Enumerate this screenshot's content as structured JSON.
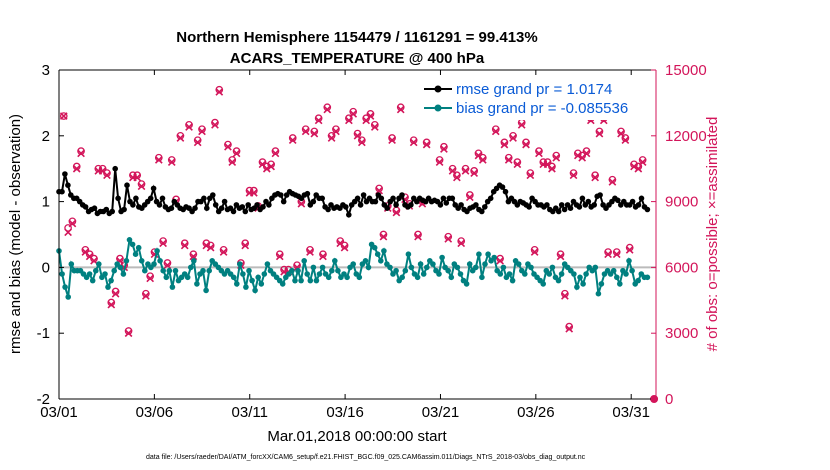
{
  "chart_data": {
    "type": "line",
    "title_line1": "Northern Hemisphere 1154479 / 1161291 = 99.413%",
    "title_line2": "ACARS_TEMPERATURE @ 400 hPa",
    "xlabel": "Mar.01,2018 00:00:00 start",
    "ylabel_left": "rmse and bias (model - observation)",
    "ylabel_right": "# of obs: o=possible; ×=assimilated",
    "footer": "data file: /Users/raeder/DAI/ATM_forcXX/CAM6_setup/f.e21.FHIST_BGC.f09_025.CAM6assim.011/Diags_NTrS_2018-03/obs_diag_output.nc",
    "x_ticks": [
      "03/01",
      "03/06",
      "03/11",
      "03/16",
      "03/21",
      "03/26",
      "03/31"
    ],
    "x_tick_days": [
      1,
      6,
      11,
      16,
      21,
      26,
      31
    ],
    "xlim_days": [
      1,
      32.3
    ],
    "ylim_left": [
      -2,
      3
    ],
    "y_ticks_left": [
      "-2",
      "-1",
      "0",
      "1",
      "2",
      "3"
    ],
    "ylim_right": [
      0,
      15000
    ],
    "y_ticks_right": [
      "0",
      "3000",
      "6000",
      "9000",
      "12000",
      "15000"
    ],
    "colors": {
      "rmse": "#000000",
      "bias": "#008080",
      "obs": "#d3155a",
      "zero_line": "#bbbbbb"
    },
    "legend": [
      {
        "label": "rmse grand pr = 1.0174",
        "series": "rmse"
      },
      {
        "label": "bias grand pr = -0.085536",
        "series": "bias"
      }
    ],
    "series": [
      {
        "name": "rmse",
        "axis": "left",
        "values": [
          1.15,
          1.15,
          1.42,
          1.25,
          1.1,
          1.05,
          1.05,
          1.0,
          0.95,
          0.92,
          0.85,
          0.88,
          0.9,
          0.82,
          0.85,
          0.85,
          0.88,
          0.82,
          0.85,
          1.5,
          1.05,
          0.85,
          0.88,
          1.25,
          1.0,
          0.95,
          1.05,
          0.92,
          0.9,
          0.95,
          1.0,
          1.05,
          1.2,
          1.0,
          0.95,
          1.05,
          0.92,
          0.88,
          0.9,
          1.0,
          0.95,
          0.9,
          0.88,
          0.92,
          0.9,
          0.85,
          0.9,
          1.0,
          1.0,
          1.05,
          0.9,
          1.05,
          1.1,
          0.95,
          0.85,
          0.9,
          1.0,
          0.88,
          0.9,
          0.85,
          0.95,
          0.9,
          0.92,
          0.85,
          0.95,
          0.88,
          0.9,
          0.95,
          0.88,
          0.92,
          1.0,
          0.95,
          1.05,
          1.1,
          1.12,
          1.1,
          1.0,
          1.1,
          1.15,
          1.12,
          1.1,
          1.08,
          1.05,
          1.1,
          1.12,
          0.95,
          1.0,
          1.1,
          1.05,
          1.05,
          0.92,
          0.88,
          0.95,
          0.9,
          0.92,
          0.9,
          0.95,
          0.92,
          0.8,
          0.95,
          1.0,
          1.05,
          0.95,
          1.1,
          1.0,
          1.05,
          1.0,
          1.0,
          1.1,
          1.05,
          0.95,
          0.9,
          1.0,
          1.05,
          0.95,
          1.05,
          1.1,
          0.95,
          0.92,
          0.95,
          1.05,
          1.0,
          1.05,
          1.02,
          1.0,
          1.05,
          1.0,
          1.02,
          1.0,
          0.95,
          1.05,
          0.98,
          1.05,
          1.05,
          0.95,
          0.9,
          0.95,
          0.88,
          0.85,
          0.9,
          0.92,
          0.95,
          0.88,
          0.85,
          0.92,
          1.0,
          1.05,
          1.15,
          1.2,
          1.25,
          1.22,
          1.15,
          1.0,
          1.05,
          1.0,
          0.95,
          1.0,
          0.98,
          0.95,
          0.92,
          1.05,
          1.0,
          0.95,
          0.95,
          0.92,
          0.95,
          0.88,
          0.85,
          0.9,
          0.85,
          0.95,
          0.88,
          0.95,
          0.9,
          1.0,
          0.95,
          0.92,
          1.05,
          0.95,
          1.0,
          0.92,
          0.95,
          1.08,
          1.1,
          0.95,
          0.9,
          0.95,
          1.0,
          1.05,
          1.02,
          0.95,
          1.0,
          0.95,
          0.95,
          1.0,
          0.92,
          0.95,
          1.05,
          0.92,
          0.88
        ]
      },
      {
        "name": "bias",
        "axis": "left",
        "values": [
          0.25,
          -0.1,
          -0.3,
          -0.45,
          0.05,
          -0.05,
          -0.05,
          -0.05,
          -0.1,
          -0.15,
          -0.1,
          -0.2,
          -0.05,
          0.05,
          -0.15,
          -0.1,
          -0.3,
          -0.2,
          -0.05,
          0.05,
          0.0,
          -0.1,
          0.1,
          0.42,
          0.35,
          0.2,
          0.3,
          0.1,
          -0.05,
          0.05,
          0.0,
          0.05,
          0.25,
          0.1,
          -0.05,
          -0.15,
          -0.05,
          -0.3,
          -0.05,
          -0.2,
          -0.15,
          -0.1,
          -0.15,
          0.0,
          0.1,
          -0.25,
          -0.1,
          -0.05,
          -0.35,
          -0.05,
          0.1,
          0.05,
          0.0,
          -0.05,
          -0.1,
          -0.05,
          -0.1,
          -0.15,
          -0.25,
          0.05,
          -0.1,
          -0.3,
          -0.05,
          -0.2,
          -0.35,
          -0.15,
          -0.25,
          -0.1,
          0.05,
          -0.05,
          -0.1,
          -0.15,
          -0.2,
          -0.25,
          -0.15,
          -0.1,
          -0.05,
          -0.2,
          -0.05,
          -0.2,
          0.1,
          -0.1,
          -0.2,
          0.0,
          -0.2,
          -0.1,
          0.0,
          -0.1,
          -0.15,
          -0.05,
          0.1,
          -0.05,
          -0.15,
          -0.1,
          -0.15,
          0.0,
          0.05,
          -0.1,
          -0.15,
          0.05,
          0.1,
          0.0,
          0.35,
          0.3,
          0.2,
          0.1,
          0.25,
          0.05,
          0.0,
          -0.1,
          -0.05,
          -0.2,
          -0.15,
          -0.05,
          0.2,
          0.0,
          -0.1,
          -0.15,
          0.05,
          -0.1,
          0.0,
          0.1,
          0.05,
          -0.05,
          -0.1,
          0.15,
          0.0,
          -0.05,
          -0.15,
          0.05,
          0.0,
          -0.1,
          -0.2,
          -0.25,
          0.05,
          -0.05,
          0.0,
          0.2,
          -0.15,
          0.05,
          0.2,
          0.1,
          0.15,
          -0.05,
          -0.1,
          0.0,
          -0.15,
          -0.1,
          -0.2,
          0.1,
          0.05,
          -0.05,
          -0.1,
          0.05,
          0.0,
          -0.1,
          -0.15,
          -0.2,
          -0.25,
          -0.05,
          -0.1,
          0.0,
          -0.15,
          -0.2,
          -0.1,
          0.05,
          0.0,
          -0.05,
          -0.1,
          -0.3,
          -0.15,
          -0.25,
          -0.1,
          0.0,
          -0.05,
          0.0,
          -0.4,
          -0.25,
          -0.1,
          -0.05,
          -0.1,
          -0.05,
          -0.15,
          -0.25,
          -0.05,
          -0.1,
          0.1,
          -0.05,
          -0.25,
          -0.2,
          -0.1,
          -0.15,
          -0.15
        ]
      },
      {
        "name": "obs_possible",
        "axis": "right",
        "values": [
          12900,
          7800,
          8100,
          10600,
          11300,
          6800,
          6600,
          6400,
          10500,
          10500,
          10300,
          4400,
          4900,
          6400,
          6100,
          3100,
          10200,
          10200,
          9800,
          4800,
          5600,
          6700,
          11000,
          7200,
          6200,
          10900,
          9100,
          12000,
          7100,
          12500,
          6600,
          11800,
          12300,
          7100,
          7000,
          12600,
          14100,
          6800,
          11600,
          10900,
          11300,
          6200,
          7100,
          9500,
          9500,
          8800,
          10800,
          10600,
          10700,
          11300,
          6600,
          5900,
          5900,
          11900,
          6100,
          9000,
          12300,
          6800,
          12200,
          12800,
          6600,
          13300,
          12000,
          12300,
          7200,
          7000,
          12800,
          13100,
          12100,
          11800,
          12800,
          13000,
          12500,
          9600,
          7500,
          8800,
          11900,
          8600,
          13300,
          9200,
          8900,
          11800,
          7500,
          9000,
          11700,
          13400,
          13100,
          10900,
          11500,
          7400,
          10500,
          10200,
          7200,
          10500,
          9300,
          10400,
          11200,
          11000,
          13300,
          13100,
          12300,
          6400,
          11700,
          11000,
          12000,
          10800,
          12600,
          11700,
          10300,
          6800,
          11300,
          10800,
          10800,
          10600,
          11100,
          6600,
          4800,
          3300,
          10300,
          11200,
          11100,
          11300,
          12800,
          10200,
          12200,
          12800,
          6700,
          10000,
          6700,
          12200,
          11900,
          6900,
          10700,
          10600,
          10900
        ]
      },
      {
        "name": "obs_assimilated",
        "axis": "right",
        "values": [
          12900,
          7600,
          8000,
          10500,
          11200,
          6700,
          6500,
          6300,
          10400,
          10400,
          10200,
          4300,
          4800,
          6300,
          6000,
          3000,
          10100,
          10100,
          9700,
          4700,
          5500,
          6600,
          10900,
          7100,
          6100,
          10800,
          9000,
          11900,
          7000,
          12400,
          6500,
          11700,
          12200,
          7000,
          6900,
          12500,
          14000,
          6700,
          11500,
          10800,
          11200,
          6100,
          7000,
          9400,
          9400,
          8700,
          10700,
          10500,
          10600,
          11200,
          6500,
          5800,
          5800,
          11800,
          6000,
          8900,
          12200,
          6700,
          12100,
          12700,
          6500,
          13200,
          11900,
          12200,
          7100,
          6900,
          12700,
          13000,
          12000,
          11700,
          12700,
          12900,
          12400,
          9500,
          7400,
          8700,
          11800,
          8500,
          13200,
          9100,
          8800,
          11700,
          7400,
          8900,
          11600,
          13300,
          13000,
          10800,
          11400,
          7300,
          10400,
          10100,
          7100,
          10400,
          9200,
          10300,
          11100,
          10900,
          13200,
          13000,
          12200,
          6300,
          11600,
          10900,
          11900,
          10700,
          12500,
          11600,
          10200,
          6700,
          11200,
          10700,
          10700,
          10500,
          11000,
          6500,
          4700,
          3200,
          10200,
          11100,
          11000,
          11200,
          12700,
          10100,
          12100,
          12700,
          6600,
          9900,
          6600,
          12100,
          11800,
          6800,
          10600,
          10500,
          10800
        ]
      }
    ],
    "obs_trailing_zero": {
      "day": 32.2,
      "value": 0
    }
  }
}
